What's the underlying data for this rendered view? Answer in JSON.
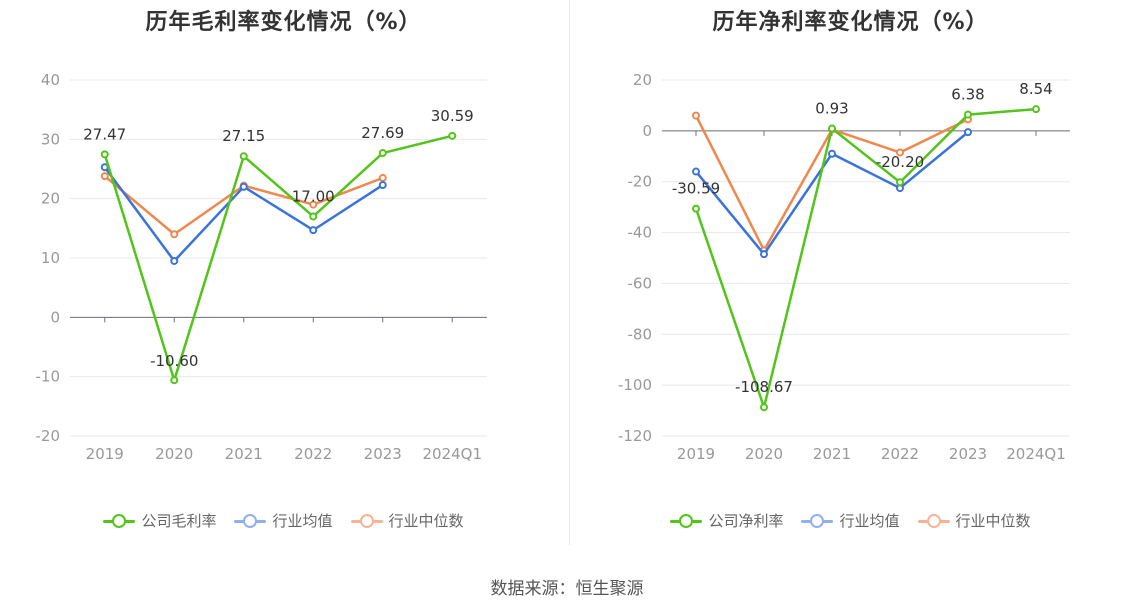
{
  "source": "数据来源：恒生聚源",
  "chart_data": [
    {
      "type": "line",
      "title": "历年毛利率变化情况（%）",
      "categories": [
        "2019",
        "2020",
        "2021",
        "2022",
        "2023",
        "2024Q1"
      ],
      "ylim": [
        -20,
        40
      ],
      "yticks": [
        -20,
        -10,
        0,
        10,
        20,
        30,
        40
      ],
      "grid": true,
      "series": [
        {
          "name": "公司毛利率",
          "color": "#52c41a",
          "values": [
            27.47,
            -10.6,
            27.15,
            17.0,
            27.69,
            30.59
          ],
          "labels": [
            "27.47",
            "-10.60",
            "27.15",
            "17.00",
            "27.69",
            "30.59"
          ]
        },
        {
          "name": "行业均值",
          "color": "#3a73d9",
          "values": [
            25.3,
            9.5,
            22.0,
            14.7,
            22.3,
            null
          ]
        },
        {
          "name": "行业中位数",
          "color": "#f0874f",
          "values": [
            23.8,
            14.0,
            22.2,
            19.0,
            23.5,
            null
          ]
        }
      ]
    },
    {
      "type": "line",
      "title": "历年净利率变化情况（%）",
      "categories": [
        "2019",
        "2020",
        "2021",
        "2022",
        "2023",
        "2024Q1"
      ],
      "ylim": [
        -120,
        20
      ],
      "yticks": [
        -120,
        -100,
        -80,
        -60,
        -40,
        -20,
        0,
        20
      ],
      "grid": true,
      "series": [
        {
          "name": "公司净利率",
          "color": "#52c41a",
          "values": [
            -30.59,
            -108.67,
            0.93,
            -20.2,
            6.38,
            8.54
          ],
          "labels": [
            "-30.59",
            "-108.67",
            "0.93",
            "-20.20",
            "6.38",
            "8.54"
          ]
        },
        {
          "name": "行业均值",
          "color": "#3a73d9",
          "values": [
            -16.0,
            -48.5,
            -9.0,
            -22.5,
            -0.5,
            null
          ]
        },
        {
          "name": "行业中位数",
          "color": "#f0874f",
          "values": [
            6.0,
            -47.0,
            0.5,
            -8.5,
            4.5,
            null
          ]
        }
      ]
    }
  ]
}
